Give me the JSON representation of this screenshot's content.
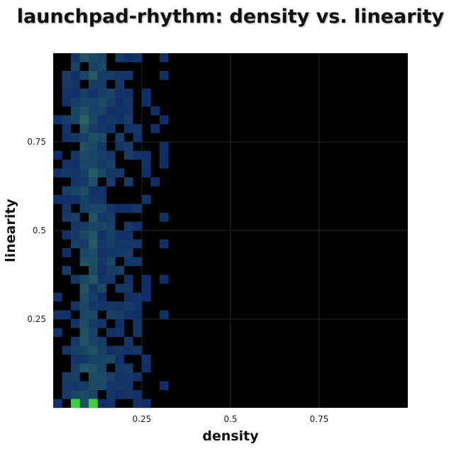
{
  "chart_data": {
    "type": "heatmap",
    "title": "launchpad-rhythm: density vs. linearity",
    "xlabel": "density",
    "ylabel": "linearity",
    "xlim": [
      0,
      1
    ],
    "ylim": [
      0,
      1
    ],
    "xticks": [
      {
        "value": 0.25,
        "label": "0.25"
      },
      {
        "value": 0.5,
        "label": "0.5"
      },
      {
        "value": 0.75,
        "label": "0.75"
      }
    ],
    "yticks": [
      {
        "value": 0.25,
        "label": "0.25"
      },
      {
        "value": 0.5,
        "label": "0.5"
      },
      {
        "value": 0.75,
        "label": "0.75"
      }
    ],
    "grid": true,
    "bins": [
      40,
      40
    ],
    "colors": {
      "background": "#000000",
      "grid": "#2a2a2a",
      "low": "#0c2768",
      "mid": "#2b6a60",
      "high": "#3bd13b"
    },
    "column_profile": [
      0.15,
      0.45,
      0.75,
      0.85,
      1.0,
      0.85,
      0.75,
      0.6,
      0.45,
      0.35,
      0.25,
      0.15,
      0.05
    ],
    "hot_cells": [
      {
        "x": 0.0625,
        "y": 0.0125,
        "value": 1.0
      },
      {
        "x": 0.1125,
        "y": 0.0125,
        "value": 1.0
      },
      {
        "x": 0.0875,
        "y": 0.8125,
        "value": 0.45
      },
      {
        "x": 0.1125,
        "y": 0.6625,
        "value": 0.4
      }
    ]
  }
}
